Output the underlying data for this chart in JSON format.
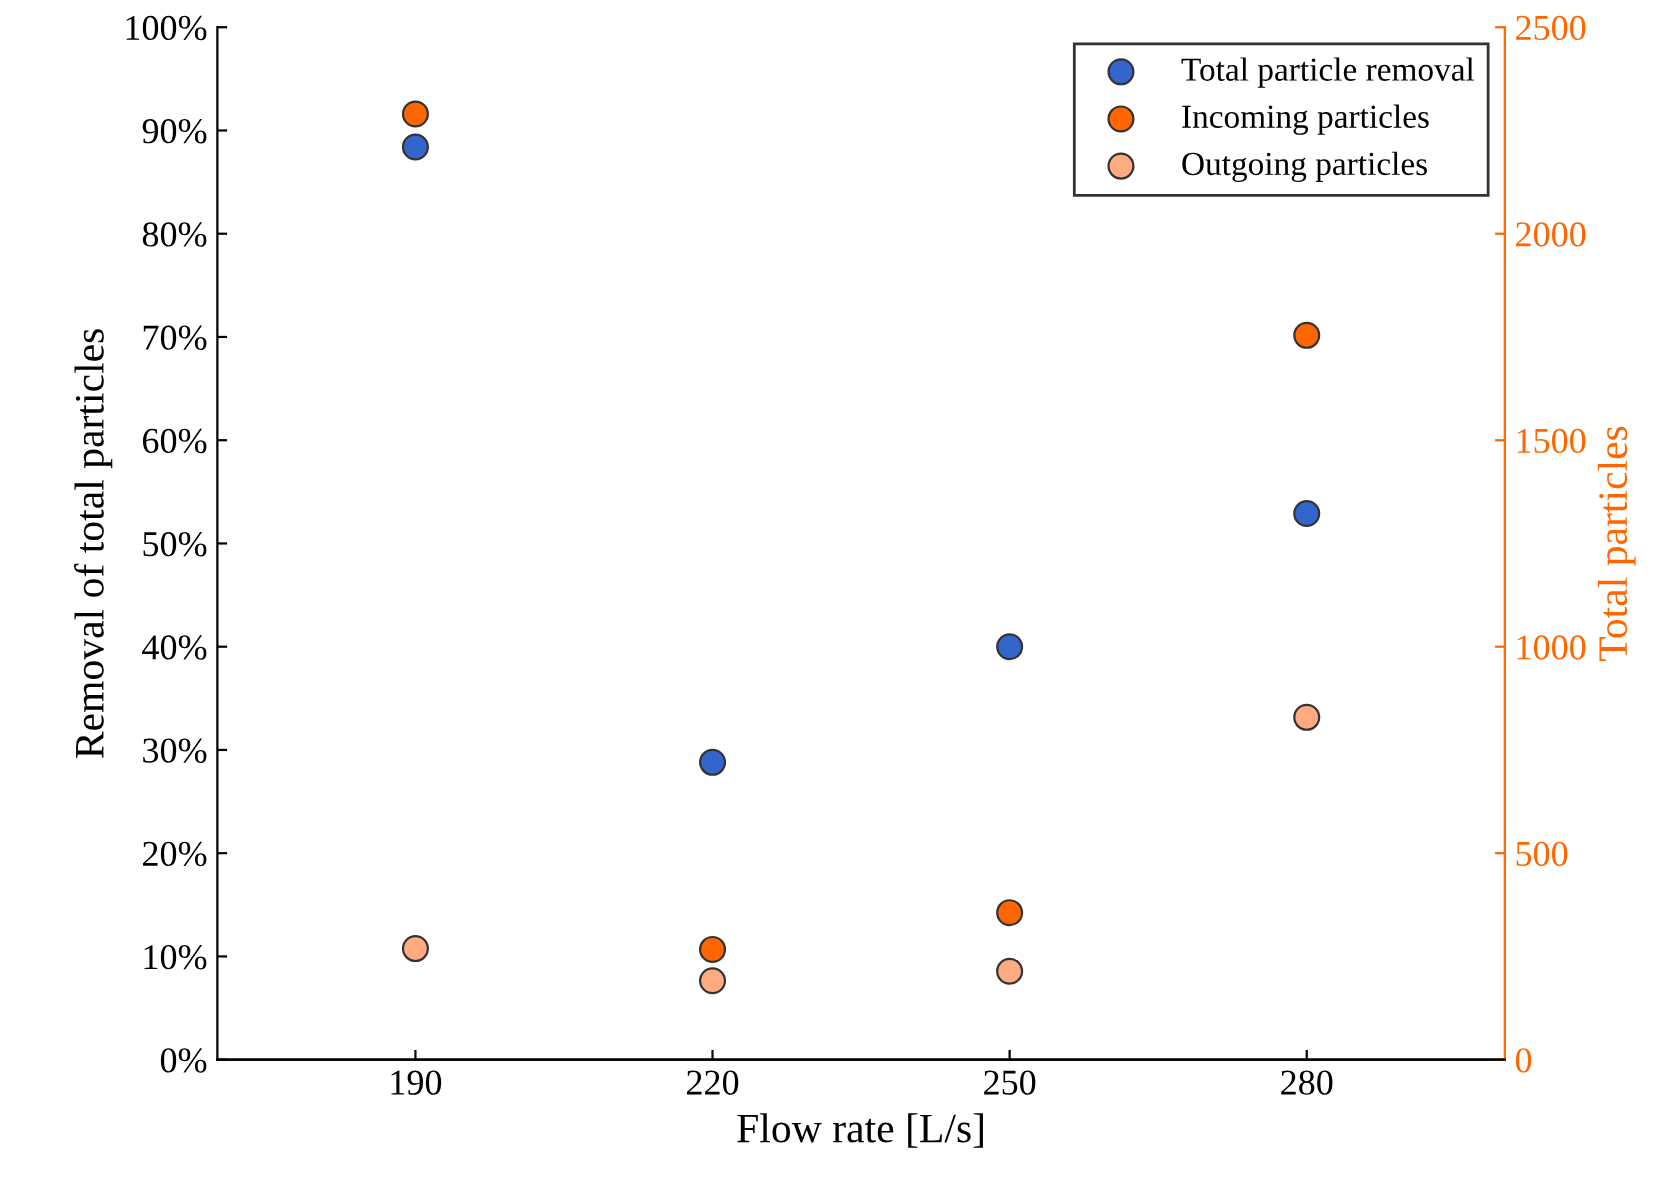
{
  "chart_data": {
    "type": "scatter",
    "xlabel": "Flow rate [L/s]",
    "ylabel": "Removal of total particles",
    "y2label": "Total particles",
    "x": [
      190,
      220,
      250,
      280
    ],
    "xlim": [
      170,
      300
    ],
    "xticks": [
      190,
      220,
      250,
      280
    ],
    "ylim": [
      0,
      100
    ],
    "yticks": [
      {
        "value": 0,
        "label": "0%"
      },
      {
        "value": 10,
        "label": "10%"
      },
      {
        "value": 20,
        "label": "20%"
      },
      {
        "value": 30,
        "label": "30%"
      },
      {
        "value": 40,
        "label": "40%"
      },
      {
        "value": 50,
        "label": "50%"
      },
      {
        "value": 60,
        "label": "60%"
      },
      {
        "value": 70,
        "label": "70%"
      },
      {
        "value": 80,
        "label": "80%"
      },
      {
        "value": 90,
        "label": "90%"
      },
      {
        "value": 100,
        "label": "100%"
      }
    ],
    "y2lim": [
      0,
      2500
    ],
    "y2ticks": [
      0,
      500,
      1000,
      1500,
      2000,
      2500
    ],
    "marker": "circle",
    "legend": "top right",
    "grid": false,
    "series": [
      {
        "name": "Total particle removal",
        "color": "#3366cc",
        "values": [
          88.4,
          28.8,
          40.0,
          52.9
        ]
      },
      {
        "name": "Incoming particles",
        "color": "#ff6600",
        "axis": "y2",
        "values": [
          2290,
          267,
          356,
          1754
        ]
      },
      {
        "name": "Outgoing particles",
        "color": "#ffaa80",
        "axis": "y2",
        "values": [
          269,
          191,
          214,
          829
        ]
      }
    ]
  }
}
